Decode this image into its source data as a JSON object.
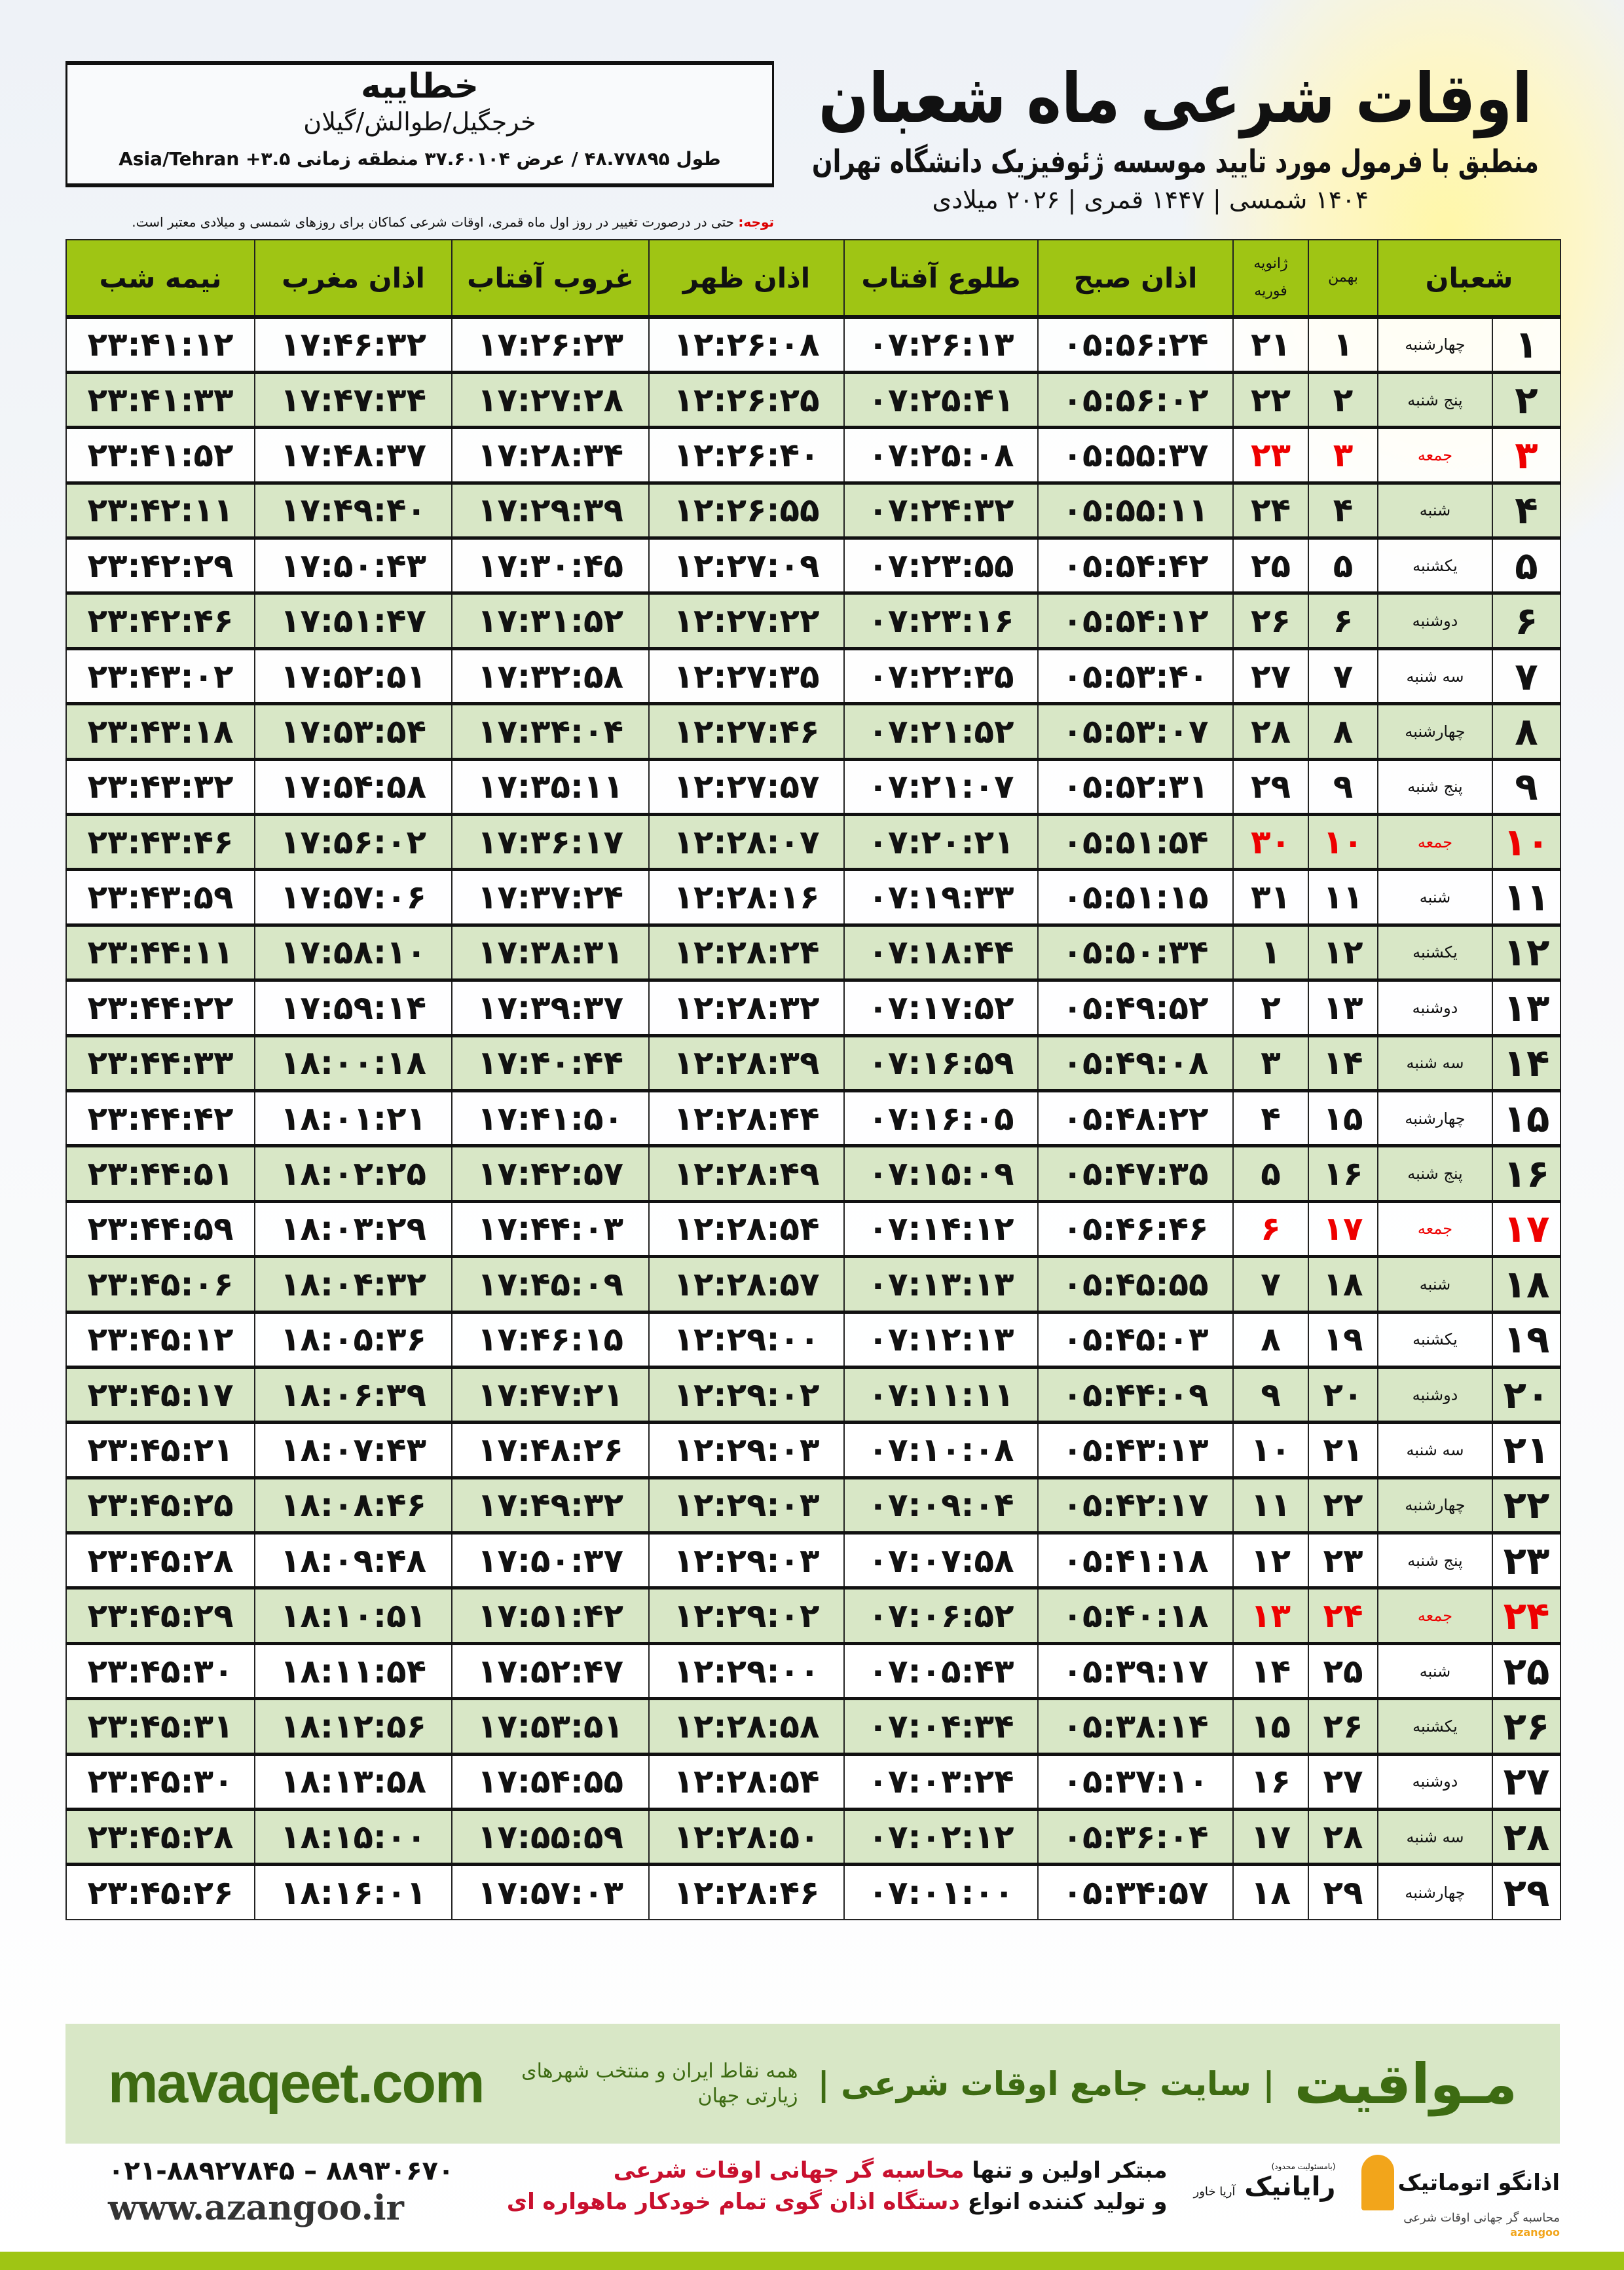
{
  "header": {
    "title": "اوقات شرعی ماه شعبان",
    "subtitle": "منطبق با فرمول مورد تایید موسسه ژئوفیزیک دانشگاه تهران",
    "dates": "۱۴۰۴ شمسی | ۱۴۴۷ قمری | ۲۰۲۶ میلادی"
  },
  "location": {
    "city": "خطاییه",
    "region": "خرجگیل/طوالش/گیلان",
    "coords": "طول ۴۸.۷۷۸۹۵ / عرض ۳۷.۶۰۱۰۴ منطقه زمانی ۳.۵+ Asia/Tehran"
  },
  "note": {
    "label": "توجه:",
    "text": " حتی در درصورت تغییر در روز اول ماه قمری، اوقات شرعی کماکان برای روزهای شمسی و میلادی معتبر است."
  },
  "table": {
    "headers": {
      "shaban": "شعبان",
      "bahman": "بهمن",
      "greg_top": "ژانویه",
      "greg_bottom": "فوریه",
      "fajr": "اذان صبح",
      "sunrise": "طلوع آفتاب",
      "dhuhr": "اذان ظهر",
      "sunset": "غروب آفتاب",
      "maghrib": "اذان مغرب",
      "midnight": "نیمه شب"
    },
    "friday_color": "#e00000",
    "row_alt_color": "#d8e7c6",
    "header_color": "#9fc514",
    "rows": [
      [
        "۱",
        "چهارشنبه",
        "۱",
        "۲۱",
        "۰۵:۵۶:۲۴",
        "۰۷:۲۶:۱۳",
        "۱۲:۲۶:۰۸",
        "۱۷:۲۶:۲۳",
        "۱۷:۴۶:۳۲",
        "۲۳:۴۱:۱۲"
      ],
      [
        "۲",
        "پنج شنبه",
        "۲",
        "۲۲",
        "۰۵:۵۶:۰۲",
        "۰۷:۲۵:۴۱",
        "۱۲:۲۶:۲۵",
        "۱۷:۲۷:۲۸",
        "۱۷:۴۷:۳۴",
        "۲۳:۴۱:۳۳"
      ],
      [
        "۳",
        "جمعه",
        "۳",
        "۲۳",
        "۰۵:۵۵:۳۷",
        "۰۷:۲۵:۰۸",
        "۱۲:۲۶:۴۰",
        "۱۷:۲۸:۳۴",
        "۱۷:۴۸:۳۷",
        "۲۳:۴۱:۵۲"
      ],
      [
        "۴",
        "شنبه",
        "۴",
        "۲۴",
        "۰۵:۵۵:۱۱",
        "۰۷:۲۴:۳۲",
        "۱۲:۲۶:۵۵",
        "۱۷:۲۹:۳۹",
        "۱۷:۴۹:۴۰",
        "۲۳:۴۲:۱۱"
      ],
      [
        "۵",
        "یکشنبه",
        "۵",
        "۲۵",
        "۰۵:۵۴:۴۲",
        "۰۷:۲۳:۵۵",
        "۱۲:۲۷:۰۹",
        "۱۷:۳۰:۴۵",
        "۱۷:۵۰:۴۳",
        "۲۳:۴۲:۲۹"
      ],
      [
        "۶",
        "دوشنبه",
        "۶",
        "۲۶",
        "۰۵:۵۴:۱۲",
        "۰۷:۲۳:۱۶",
        "۱۲:۲۷:۲۲",
        "۱۷:۳۱:۵۲",
        "۱۷:۵۱:۴۷",
        "۲۳:۴۲:۴۶"
      ],
      [
        "۷",
        "سه شنبه",
        "۷",
        "۲۷",
        "۰۵:۵۳:۴۰",
        "۰۷:۲۲:۳۵",
        "۱۲:۲۷:۳۵",
        "۱۷:۳۲:۵۸",
        "۱۷:۵۲:۵۱",
        "۲۳:۴۳:۰۲"
      ],
      [
        "۸",
        "چهارشنبه",
        "۸",
        "۲۸",
        "۰۵:۵۳:۰۷",
        "۰۷:۲۱:۵۲",
        "۱۲:۲۷:۴۶",
        "۱۷:۳۴:۰۴",
        "۱۷:۵۳:۵۴",
        "۲۳:۴۳:۱۸"
      ],
      [
        "۹",
        "پنج شنبه",
        "۹",
        "۲۹",
        "۰۵:۵۲:۳۱",
        "۰۷:۲۱:۰۷",
        "۱۲:۲۷:۵۷",
        "۱۷:۳۵:۱۱",
        "۱۷:۵۴:۵۸",
        "۲۳:۴۳:۳۲"
      ],
      [
        "۱۰",
        "جمعه",
        "۱۰",
        "۳۰",
        "۰۵:۵۱:۵۴",
        "۰۷:۲۰:۲۱",
        "۱۲:۲۸:۰۷",
        "۱۷:۳۶:۱۷",
        "۱۷:۵۶:۰۲",
        "۲۳:۴۳:۴۶"
      ],
      [
        "۱۱",
        "شنبه",
        "۱۱",
        "۳۱",
        "۰۵:۵۱:۱۵",
        "۰۷:۱۹:۳۳",
        "۱۲:۲۸:۱۶",
        "۱۷:۳۷:۲۴",
        "۱۷:۵۷:۰۶",
        "۲۳:۴۳:۵۹"
      ],
      [
        "۱۲",
        "یکشنبه",
        "۱۲",
        "۱",
        "۰۵:۵۰:۳۴",
        "۰۷:۱۸:۴۴",
        "۱۲:۲۸:۲۴",
        "۱۷:۳۸:۳۱",
        "۱۷:۵۸:۱۰",
        "۲۳:۴۴:۱۱"
      ],
      [
        "۱۳",
        "دوشنبه",
        "۱۳",
        "۲",
        "۰۵:۴۹:۵۲",
        "۰۷:۱۷:۵۲",
        "۱۲:۲۸:۳۲",
        "۱۷:۳۹:۳۷",
        "۱۷:۵۹:۱۴",
        "۲۳:۴۴:۲۲"
      ],
      [
        "۱۴",
        "سه شنبه",
        "۱۴",
        "۳",
        "۰۵:۴۹:۰۸",
        "۰۷:۱۶:۵۹",
        "۱۲:۲۸:۳۹",
        "۱۷:۴۰:۴۴",
        "۱۸:۰۰:۱۸",
        "۲۳:۴۴:۳۳"
      ],
      [
        "۱۵",
        "چهارشنبه",
        "۱۵",
        "۴",
        "۰۵:۴۸:۲۲",
        "۰۷:۱۶:۰۵",
        "۱۲:۲۸:۴۴",
        "۱۷:۴۱:۵۰",
        "۱۸:۰۱:۲۱",
        "۲۳:۴۴:۴۲"
      ],
      [
        "۱۶",
        "پنج شنبه",
        "۱۶",
        "۵",
        "۰۵:۴۷:۳۵",
        "۰۷:۱۵:۰۹",
        "۱۲:۲۸:۴۹",
        "۱۷:۴۲:۵۷",
        "۱۸:۰۲:۲۵",
        "۲۳:۴۴:۵۱"
      ],
      [
        "۱۷",
        "جمعه",
        "۱۷",
        "۶",
        "۰۵:۴۶:۴۶",
        "۰۷:۱۴:۱۲",
        "۱۲:۲۸:۵۴",
        "۱۷:۴۴:۰۳",
        "۱۸:۰۳:۲۹",
        "۲۳:۴۴:۵۹"
      ],
      [
        "۱۸",
        "شنبه",
        "۱۸",
        "۷",
        "۰۵:۴۵:۵۵",
        "۰۷:۱۳:۱۳",
        "۱۲:۲۸:۵۷",
        "۱۷:۴۵:۰۹",
        "۱۸:۰۴:۳۲",
        "۲۳:۴۵:۰۶"
      ],
      [
        "۱۹",
        "یکشنبه",
        "۱۹",
        "۸",
        "۰۵:۴۵:۰۳",
        "۰۷:۱۲:۱۳",
        "۱۲:۲۹:۰۰",
        "۱۷:۴۶:۱۵",
        "۱۸:۰۵:۳۶",
        "۲۳:۴۵:۱۲"
      ],
      [
        "۲۰",
        "دوشنبه",
        "۲۰",
        "۹",
        "۰۵:۴۴:۰۹",
        "۰۷:۱۱:۱۱",
        "۱۲:۲۹:۰۲",
        "۱۷:۴۷:۲۱",
        "۱۸:۰۶:۳۹",
        "۲۳:۴۵:۱۷"
      ],
      [
        "۲۱",
        "سه شنبه",
        "۲۱",
        "۱۰",
        "۰۵:۴۳:۱۳",
        "۰۷:۱۰:۰۸",
        "۱۲:۲۹:۰۳",
        "۱۷:۴۸:۲۶",
        "۱۸:۰۷:۴۳",
        "۲۳:۴۵:۲۱"
      ],
      [
        "۲۲",
        "چهارشنبه",
        "۲۲",
        "۱۱",
        "۰۵:۴۲:۱۷",
        "۰۷:۰۹:۰۴",
        "۱۲:۲۹:۰۳",
        "۱۷:۴۹:۳۲",
        "۱۸:۰۸:۴۶",
        "۲۳:۴۵:۲۵"
      ],
      [
        "۲۳",
        "پنج شنبه",
        "۲۳",
        "۱۲",
        "۰۵:۴۱:۱۸",
        "۰۷:۰۷:۵۸",
        "۱۲:۲۹:۰۳",
        "۱۷:۵۰:۳۷",
        "۱۸:۰۹:۴۸",
        "۲۳:۴۵:۲۸"
      ],
      [
        "۲۴",
        "جمعه",
        "۲۴",
        "۱۳",
        "۰۵:۴۰:۱۸",
        "۰۷:۰۶:۵۲",
        "۱۲:۲۹:۰۲",
        "۱۷:۵۱:۴۲",
        "۱۸:۱۰:۵۱",
        "۲۳:۴۵:۲۹"
      ],
      [
        "۲۵",
        "شنبه",
        "۲۵",
        "۱۴",
        "۰۵:۳۹:۱۷",
        "۰۷:۰۵:۴۳",
        "۱۲:۲۹:۰۰",
        "۱۷:۵۲:۴۷",
        "۱۸:۱۱:۵۴",
        "۲۳:۴۵:۳۰"
      ],
      [
        "۲۶",
        "یکشنبه",
        "۲۶",
        "۱۵",
        "۰۵:۳۸:۱۴",
        "۰۷:۰۴:۳۴",
        "۱۲:۲۸:۵۸",
        "۱۷:۵۳:۵۱",
        "۱۸:۱۲:۵۶",
        "۲۳:۴۵:۳۱"
      ],
      [
        "۲۷",
        "دوشنبه",
        "۲۷",
        "۱۶",
        "۰۵:۳۷:۱۰",
        "۰۷:۰۳:۲۴",
        "۱۲:۲۸:۵۴",
        "۱۷:۵۴:۵۵",
        "۱۸:۱۳:۵۸",
        "۲۳:۴۵:۳۰"
      ],
      [
        "۲۸",
        "سه شنبه",
        "۲۸",
        "۱۷",
        "۰۵:۳۶:۰۴",
        "۰۷:۰۲:۱۲",
        "۱۲:۲۸:۵۰",
        "۱۷:۵۵:۵۹",
        "۱۸:۱۵:۰۰",
        "۲۳:۴۵:۲۸"
      ],
      [
        "۲۹",
        "چهارشنبه",
        "۲۹",
        "۱۸",
        "۰۵:۳۴:۵۷",
        "۰۷:۰۱:۰۰",
        "۱۲:۲۸:۴۶",
        "۱۷:۵۷:۰۳",
        "۱۸:۱۶:۰۱",
        "۲۳:۴۵:۲۶"
      ]
    ]
  },
  "footer": {
    "brand": "مـواقیت",
    "tagline": "| سایت جامع اوقات شرعی |",
    "tagline2": "همه نقاط ایران و منتخب شهرهای زیارتی جهان",
    "site": "mavaqeet.com",
    "brand_color": "#3d6b12",
    "phone": "۰۲۱-۸۸۹۲۷۸۴۵ – ۸۸۹۳۰۶۷۰",
    "web": "www.azangoo.ir",
    "promo1_a": "مبتکر اولین و تنها ",
    "promo1_b": "محاسبه گر جهانی اوقات شرعی",
    "promo2_a": "و تولید کننده انواع ",
    "promo2_b": "دستگاه اذان گوی تمام خودکار ماهواره ای",
    "logo_azangoo": "اذانگو اتوماتیک",
    "logo_azangoo_sub": "محاسبه گر جهانی اوقات شرعی",
    "logo_azangoo_en": "azangoo",
    "logo_rayanik": "رایانیک",
    "logo_rayanik_k": "آریا خاور",
    "logo_rayanik_sub": "(بامسئولیت محدود)"
  }
}
